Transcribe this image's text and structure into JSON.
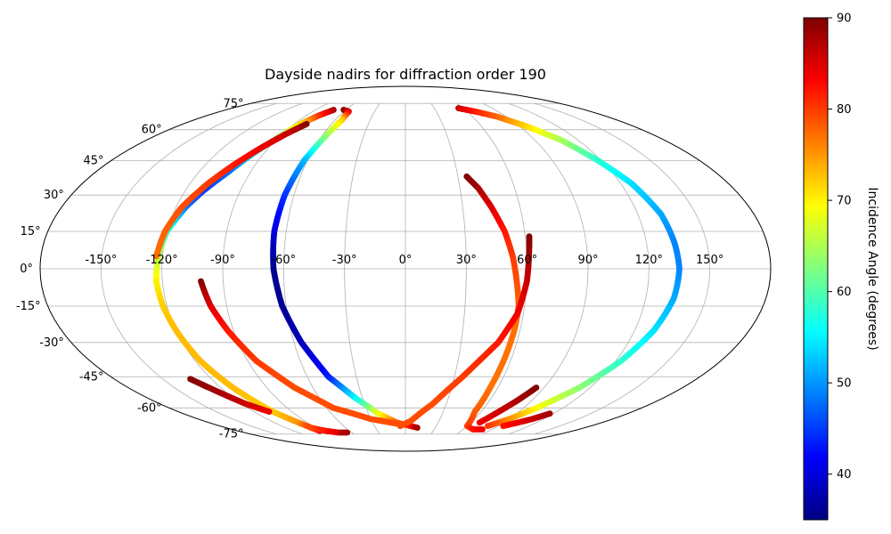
{
  "chart_data": {
    "type": "scatter",
    "projection": "mollweide",
    "title": "Dayside nadirs for diffraction order 190",
    "grid": true,
    "xticks": [
      -150,
      -120,
      -90,
      -60,
      -30,
      0,
      30,
      60,
      90,
      120,
      150
    ],
    "yticks": [
      -75,
      -60,
      -45,
      -30,
      -15,
      0,
      15,
      30,
      45,
      60,
      75
    ],
    "xtick_labels": [
      "-150°",
      "-120°",
      "-90°",
      "-60°",
      "-30°",
      "0°",
      "30°",
      "60°",
      "90°",
      "120°",
      "150°"
    ],
    "ytick_labels": [
      "-75°",
      "-60°",
      "-45°",
      "-30°",
      "-15°",
      "0°",
      "15°",
      "30°",
      "45°",
      "60°",
      "75°"
    ],
    "colorbar": {
      "label": "Incidence Angle (degrees)",
      "colormap": "jet",
      "range": [
        35,
        90
      ],
      "ticks": [
        40,
        50,
        60,
        70,
        80,
        90
      ],
      "tick_labels": [
        "40",
        "50",
        "60",
        "70",
        "80",
        "90"
      ]
    },
    "tracks": [
      {
        "points": [
          [
            -72,
            71,
            88
          ],
          [
            -78,
            68,
            82
          ],
          [
            -85,
            63,
            72
          ],
          [
            -91,
            55,
            62
          ],
          [
            -97,
            48,
            55
          ],
          [
            -103,
            40,
            48
          ],
          [
            -110,
            32,
            45
          ],
          [
            -115,
            25,
            48
          ],
          [
            -120,
            15,
            58
          ],
          [
            -122,
            5,
            65
          ],
          [
            -123,
            -5,
            70
          ],
          [
            -122,
            -15,
            72
          ],
          [
            -120,
            -25,
            73
          ],
          [
            -117,
            -38,
            73
          ],
          [
            -112,
            -50,
            73
          ],
          [
            -105,
            -62,
            72
          ],
          [
            -98,
            -68,
            75
          ],
          [
            -92,
            -73,
            84
          ]
        ]
      },
      {
        "points": [
          [
            -62,
            71,
            90
          ],
          [
            -55,
            70,
            85
          ],
          [
            -54,
            65,
            72
          ],
          [
            -58,
            55,
            62
          ],
          [
            -62,
            45,
            52
          ],
          [
            -65,
            30,
            45
          ],
          [
            -66,
            15,
            40
          ],
          [
            -65,
            0,
            36
          ],
          [
            -62,
            -15,
            36
          ],
          [
            -56,
            -30,
            38
          ],
          [
            -47,
            -45,
            43
          ],
          [
            -35,
            -55,
            55
          ],
          [
            -22,
            -63,
            68
          ],
          [
            -8,
            -68,
            78
          ],
          [
            5,
            -70,
            82
          ],
          [
            12,
            -71,
            88
          ]
        ]
      },
      {
        "points": [
          [
            -80,
            63,
            90
          ],
          [
            -87,
            58,
            86
          ],
          [
            -95,
            51,
            84
          ],
          [
            -103,
            43,
            82
          ],
          [
            -110,
            35,
            80
          ],
          [
            -117,
            25,
            79
          ],
          [
            -121,
            15,
            78
          ],
          [
            -123,
            5,
            77
          ]
        ]
      },
      {
        "points": [
          [
            -101,
            -5,
            90
          ],
          [
            -98,
            -15,
            85
          ],
          [
            -93,
            -25,
            82
          ],
          [
            -85,
            -38,
            80
          ],
          [
            -72,
            -50,
            79
          ],
          [
            -55,
            -60,
            79
          ],
          [
            -30,
            -66,
            79
          ],
          [
            -5,
            -69,
            79
          ]
        ]
      },
      {
        "points": [
          [
            -133,
            -46,
            90
          ],
          [
            -125,
            -52,
            88
          ],
          [
            -117,
            -58,
            86
          ],
          [
            -108,
            -62,
            84
          ]
        ]
      },
      {
        "points": [
          [
            -95,
            -71,
            79
          ],
          [
            -85,
            -73,
            82
          ],
          [
            -75,
            -74,
            85
          ],
          [
            -65,
            -74,
            88
          ]
        ]
      },
      {
        "points": [
          [
            35,
            38,
            90
          ],
          [
            40,
            33,
            88
          ],
          [
            45,
            25,
            85
          ],
          [
            50,
            15,
            82
          ],
          [
            53,
            5,
            80
          ],
          [
            55,
            -5,
            79
          ],
          [
            57,
            -15,
            78
          ],
          [
            57,
            -25,
            77
          ],
          [
            56,
            -38,
            77
          ],
          [
            55,
            -50,
            77
          ],
          [
            55,
            -62,
            78
          ],
          [
            60,
            -70,
            80
          ],
          [
            70,
            -72,
            82
          ],
          [
            80,
            -72,
            84
          ]
        ]
      },
      {
        "points": [
          [
            62,
            13,
            90
          ],
          [
            61,
            5,
            88
          ],
          [
            60,
            -5,
            86
          ],
          [
            57,
            -18,
            84
          ],
          [
            50,
            -30,
            82
          ],
          [
            35,
            -45,
            80
          ],
          [
            20,
            -58,
            79
          ],
          [
            5,
            -67,
            79
          ],
          [
            -5,
            -70,
            79
          ]
        ]
      },
      {
        "points": [
          [
            85,
            -50,
            90
          ],
          [
            80,
            -56,
            88
          ],
          [
            74,
            -62,
            86
          ],
          [
            68,
            -68,
            84
          ]
        ]
      },
      {
        "points": [
          [
            55,
            72,
            86
          ],
          [
            68,
            70,
            82
          ],
          [
            82,
            67,
            78
          ],
          [
            95,
            62,
            72
          ],
          [
            108,
            55,
            65
          ],
          [
            118,
            45,
            58
          ],
          [
            126,
            35,
            54
          ],
          [
            132,
            22,
            51
          ],
          [
            134,
            10,
            49
          ],
          [
            135,
            0,
            49
          ],
          [
            134,
            -12,
            51
          ],
          [
            130,
            -25,
            54
          ],
          [
            123,
            -38,
            58
          ],
          [
            113,
            -50,
            63
          ],
          [
            100,
            -60,
            69
          ],
          [
            90,
            -66,
            75
          ],
          [
            80,
            -70,
            80
          ]
        ]
      },
      {
        "points": [
          [
            95,
            -70,
            82
          ],
          [
            103,
            -68,
            84
          ],
          [
            110,
            -66,
            86
          ],
          [
            117,
            -63,
            88
          ]
        ]
      }
    ]
  }
}
